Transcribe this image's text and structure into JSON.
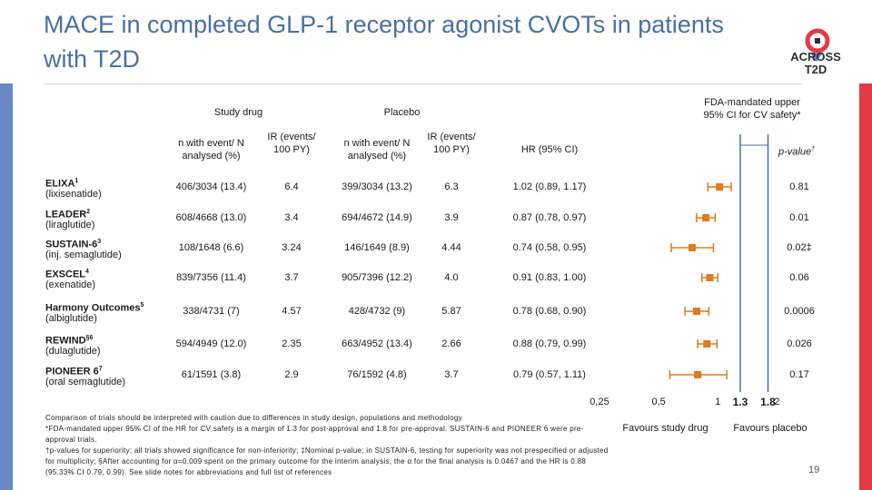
{
  "header": {
    "title": "MACE in completed GLP-1 receptor agonist CVOTs in patients with T2D",
    "logo_text": "ACROSS T2D"
  },
  "columns": {
    "study_drug": "Study drug",
    "placebo": "Placebo",
    "n_event": "n with event/ N analysed (%)",
    "ir": "IR (events/ 100 PY)",
    "hr": "HR (95% CI)",
    "pvalue": "p-value",
    "pvalue_sup": "†",
    "fda": "FDA-mandated upper 95% CI for CV safety*"
  },
  "chart_data": {
    "type": "forest",
    "xlabel": "HR (95% CI)",
    "xscale": "log",
    "xlim": [
      0.25,
      2.1
    ],
    "ticks": [
      {
        "value": 0.25,
        "label": "0,25",
        "bold": false
      },
      {
        "value": 0.5,
        "label": "0,5",
        "bold": false
      },
      {
        "value": 1,
        "label": "1",
        "bold": false
      },
      {
        "value": 1.3,
        "label": "1.3",
        "bold": true
      },
      {
        "value": 1.8,
        "label": "1.8",
        "bold": true
      },
      {
        "value": 2,
        "label": "2",
        "bold": false
      }
    ],
    "reference_lines": [
      1.3,
      1.8
    ],
    "favours_left": "Favours study drug",
    "favours_right": "Favours placebo",
    "trials": [
      {
        "name": "ELIXA",
        "sup": "1",
        "drug": "(lixisenatide)",
        "drug_n": "406/3034 (13.4)",
        "drug_ir": "6.4",
        "placebo_n": "399/3034 (13.2)",
        "placebo_ir": "6.3",
        "hr_text": "1.02 (0.89, 1.17)",
        "hr": 1.02,
        "lo": 0.89,
        "hi": 1.17,
        "p": "0.81"
      },
      {
        "name": "LEADER",
        "sup": "2",
        "drug": "(liraglutide)",
        "drug_n": "608/4668 (13.0)",
        "drug_ir": "3.4",
        "placebo_n": "694/4672 (14.9)",
        "placebo_ir": "3.9",
        "hr_text": "0.87 (0.78, 0.97)",
        "hr": 0.87,
        "lo": 0.78,
        "hi": 0.97,
        "p": "0.01"
      },
      {
        "name": "SUSTAIN-6",
        "sup": "3",
        "drug": "(inj. semaglutide)",
        "drug_n": "108/1648 (6.6)",
        "drug_ir": "3.24",
        "placebo_n": "146/1649 (8.9)",
        "placebo_ir": "4.44",
        "hr_text": "0.74 (0.58, 0.95)",
        "hr": 0.74,
        "lo": 0.58,
        "hi": 0.95,
        "p": "0.02‡"
      },
      {
        "name": "EXSCEL",
        "sup": "4",
        "drug": "(exenatide)",
        "drug_n": "839/7356 (11.4)",
        "drug_ir": "3.7",
        "placebo_n": "905/7396 (12.2)",
        "placebo_ir": "4.0",
        "hr_text": "0.91 (0.83, 1.00)",
        "hr": 0.91,
        "lo": 0.83,
        "hi": 1.0,
        "p": "0.06"
      },
      {
        "name": "Harmony Outcomes",
        "sup": "5",
        "drug": "(albiglutide)",
        "drug_n": "338/4731 (7)",
        "drug_ir": "4.57",
        "placebo_n": "428/4732 (9)",
        "placebo_ir": "5.87",
        "hr_text": "0.78 (0.68, 0.90)",
        "hr": 0.78,
        "lo": 0.68,
        "hi": 0.9,
        "p": "0.0006"
      },
      {
        "name": "REWIND",
        "sup": "§6",
        "drug": "(dulaglutide)",
        "drug_n": "594/4949 (12.0)",
        "drug_ir": "2.35",
        "placebo_n": "663/4952 (13.4)",
        "placebo_ir": "2.66",
        "hr_text": "0.88 (0.79, 0.99)",
        "hr": 0.88,
        "lo": 0.79,
        "hi": 0.99,
        "p": "0.026"
      },
      {
        "name": "PIONEER 6",
        "sup": "7",
        "drug": "(oral semaglutide)",
        "drug_n": "61/1591 (3.8)",
        "drug_ir": "2.9",
        "placebo_n": "76/1592 (4.8)",
        "placebo_ir": "3.7",
        "hr_text": "0.79 (0.57, 1.11)",
        "hr": 0.79,
        "lo": 0.57,
        "hi": 1.11,
        "p": "0.17"
      }
    ],
    "colors": {
      "marker": "#e07a1f",
      "ci": "#e07a1f",
      "reference": "#4a6fa5",
      "axis": "#333333"
    }
  },
  "footnotes": {
    "line1": "Comparison of trials should be interpreted with caution due to differences in study design, populations and methodology",
    "line2": "*FDA-mandated upper 95% CI of the HR for CV safety is a margin of 1.3 for post-approval and 1.8 for pre-approval. SUSTAIN-6 and PIONEER 6 were pre-approval trials.",
    "line3": "†p-values for superiority; all trials showed significance for non-inferiority; ‡Nominal p-value; in SUSTAIN-6, testing for superiority was not prespecified or adjusted for multiplicity; §After accounting for α=0.009 spent on the primary outcome for the interim analysis, the α for the final analysis is 0.0467 and the HR is 0.88 (95.33% CI 0.79, 0.99). See slide notes for abbreviations and full list of references"
  },
  "page_number": "19"
}
